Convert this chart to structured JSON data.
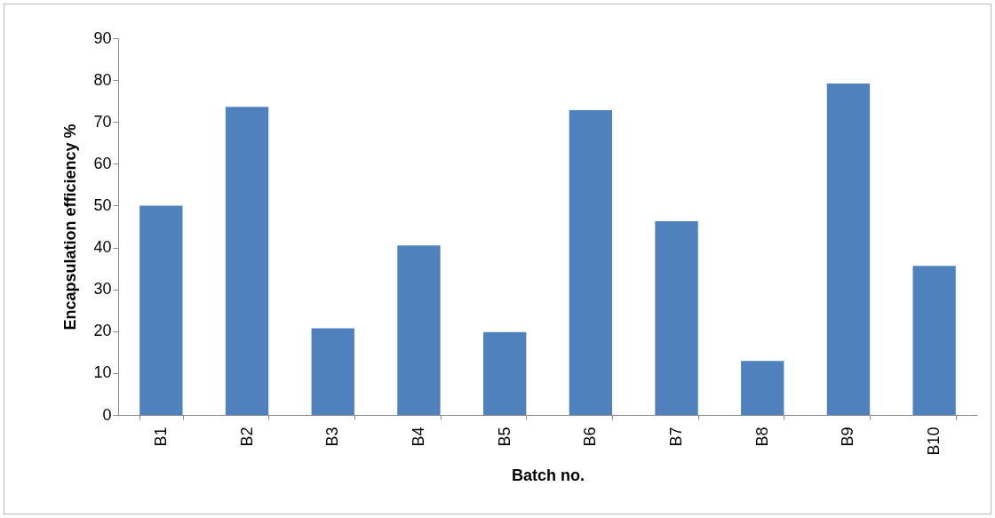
{
  "chart_data": {
    "type": "bar",
    "xlabel": "Batch  no.",
    "ylabel": "Encapsulation efficiency %",
    "categories": [
      "B1",
      "B2",
      "B3",
      "B4",
      "B5",
      "B6",
      "B7",
      "B8",
      "B9",
      "B10"
    ],
    "values": [
      50,
      73.6,
      20.7,
      40.5,
      19.8,
      72.8,
      46.3,
      12.9,
      79.2,
      35.6
    ],
    "color": "#4f81bd",
    "ylim": [
      0,
      90
    ],
    "yticks": [
      0,
      10,
      20,
      30,
      40,
      50,
      60,
      70,
      80,
      90
    ],
    "grid": false
  }
}
